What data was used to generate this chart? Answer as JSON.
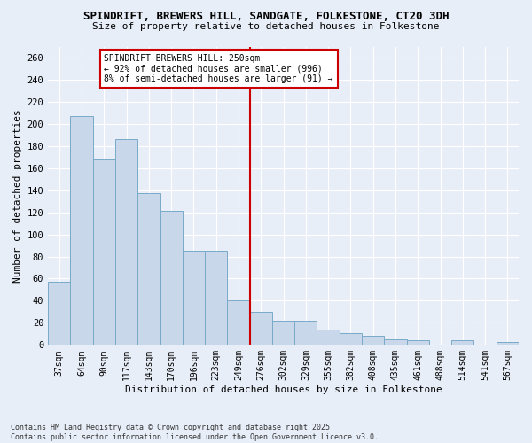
{
  "title": "SPINDRIFT, BREWERS HILL, SANDGATE, FOLKESTONE, CT20 3DH",
  "subtitle": "Size of property relative to detached houses in Folkestone",
  "xlabel": "Distribution of detached houses by size in Folkestone",
  "ylabel": "Number of detached properties",
  "footer_line1": "Contains HM Land Registry data © Crown copyright and database right 2025.",
  "footer_line2": "Contains public sector information licensed under the Open Government Licence v3.0.",
  "categories": [
    "37sqm",
    "64sqm",
    "90sqm",
    "117sqm",
    "143sqm",
    "170sqm",
    "196sqm",
    "223sqm",
    "249sqm",
    "276sqm",
    "302sqm",
    "329sqm",
    "355sqm",
    "382sqm",
    "408sqm",
    "435sqm",
    "461sqm",
    "488sqm",
    "514sqm",
    "541sqm",
    "567sqm"
  ],
  "values": [
    57,
    207,
    168,
    186,
    137,
    121,
    85,
    85,
    40,
    30,
    22,
    22,
    14,
    11,
    8,
    5,
    4,
    0,
    4,
    0,
    3
  ],
  "bar_color": "#c8d8ea",
  "bar_edge_color": "#7aaac8",
  "background_color": "#e8eef8",
  "plot_bg_color": "#e8eef8",
  "grid_color": "#ffffff",
  "vline_x_index": 8,
  "vline_color": "#cc0000",
  "annotation_title": "SPINDRIFT BREWERS HILL: 250sqm",
  "annotation_line2": "← 92% of detached houses are smaller (996)",
  "annotation_line3": "8% of semi-detached houses are larger (91) →",
  "annotation_box_color": "#cc0000",
  "ylim": [
    0,
    270
  ],
  "yticks": [
    0,
    20,
    40,
    60,
    80,
    100,
    120,
    140,
    160,
    180,
    200,
    220,
    240,
    260
  ]
}
